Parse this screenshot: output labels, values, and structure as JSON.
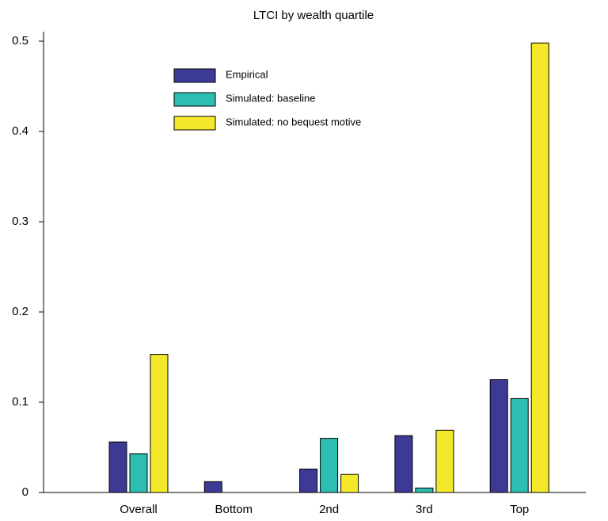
{
  "chart_data": {
    "type": "bar",
    "title": "LTCI by wealth quartile",
    "categories": [
      "Overall",
      "Bottom",
      "2nd",
      "3rd",
      "Top"
    ],
    "series": [
      {
        "name": "Empirical",
        "color": "#3d3a96",
        "values": [
          0.056,
          0.012,
          0.026,
          0.063,
          0.125
        ]
      },
      {
        "name": "Simulated: baseline",
        "color": "#2cbfb1",
        "values": [
          0.043,
          0,
          0.06,
          0.005,
          0.104
        ]
      },
      {
        "name": "Simulated: no bequest motive",
        "color": "#f3e829",
        "values": [
          0.153,
          0,
          0.02,
          0.069,
          0.498
        ]
      }
    ],
    "ylim": [
      0,
      0.5
    ],
    "yticks": [
      0,
      0.1,
      0.2,
      0.3,
      0.4,
      0.5
    ]
  }
}
